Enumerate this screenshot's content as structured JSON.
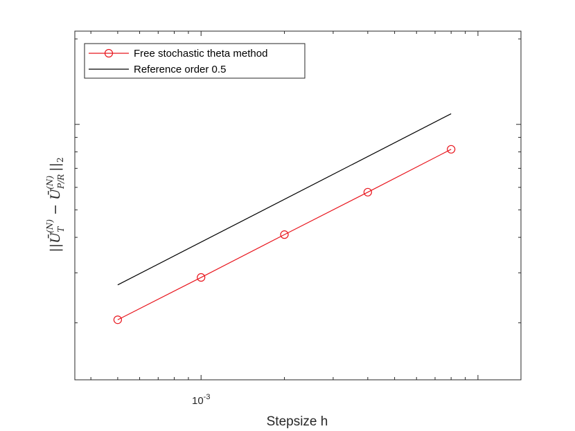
{
  "chart_data": {
    "type": "line",
    "xscale": "log",
    "yscale": "log",
    "xlabel": "Stepsize h",
    "xtick_labels": [
      {
        "value": 0.001,
        "base": "10",
        "exponent": "-3"
      }
    ],
    "ylabel": {
      "prefix": "||",
      "term1": "Ū",
      "term1_sub": "T",
      "term1_sup": "(N)",
      "minus": " − ",
      "term2": "Ū",
      "term2_sub": "P/R",
      "term2_sup": "(N)",
      "suffix": "||",
      "suffix_sub": "2"
    },
    "legend_position": "top-left",
    "grid": false,
    "series": [
      {
        "name": "Free stochastic theta method",
        "color": "#e8141c",
        "marker": "circle",
        "x": [
          0.0005,
          0.001,
          0.002,
          0.004,
          0.008
        ],
        "y": [
          0.000205,
          0.000289,
          0.000409,
          0.000577,
          0.000817
        ]
      },
      {
        "name": "Reference order 0.5",
        "color": "#000000",
        "marker": "none",
        "x": [
          0.0005,
          0.008
        ],
        "y": [
          0.000272,
          0.00109
        ]
      }
    ]
  }
}
